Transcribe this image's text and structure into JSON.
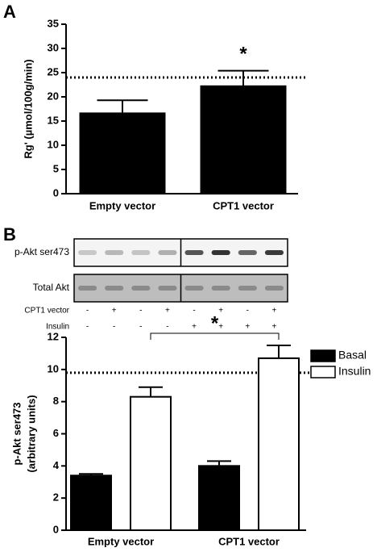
{
  "chart_data": [
    {
      "type": "bar",
      "panel_label": "A",
      "ylabel": "Rg' (µmol/100g/min)",
      "categories": [
        "Empty vector",
        "CPT1 vector"
      ],
      "values": [
        16.6,
        22.2
      ],
      "errors": [
        2.7,
        3.2
      ],
      "color": "#000000",
      "ylim": [
        0,
        35
      ],
      "yticks": [
        0,
        5,
        10,
        15,
        20,
        25,
        30,
        35
      ],
      "reference_line": 24,
      "annotation": "*"
    },
    {
      "type": "grouped_bar",
      "panel_label": "B",
      "ylabel": [
        "p-Akt ser473",
        "(arbitrary units)"
      ],
      "categories": [
        "Empty vector",
        "CPT1 vector"
      ],
      "series": [
        {
          "name": "Basal",
          "color": "#000000",
          "values": [
            3.4,
            4.0
          ],
          "errors": [
            0.1,
            0.3
          ]
        },
        {
          "name": "Insulin",
          "color": "#ffffff",
          "values": [
            8.3,
            10.7
          ],
          "errors": [
            0.6,
            0.8
          ]
        }
      ],
      "ylim": [
        0,
        12
      ],
      "yticks": [
        0,
        2,
        4,
        6,
        8,
        10,
        12
      ],
      "reference_line": 9.8,
      "annotation": "*",
      "legend": "upper right"
    }
  ],
  "blot": {
    "rows": [
      "p-Akt ser473",
      "Total Akt"
    ],
    "conditions": [
      {
        "name": "CPT1 vector",
        "signs": [
          "-",
          "+",
          "-",
          "+",
          "-",
          "+",
          "-",
          "+"
        ]
      },
      {
        "name": "Insulin",
        "signs": [
          "-",
          "-",
          "-",
          "-",
          "+",
          "+",
          "+",
          "+"
        ]
      }
    ]
  }
}
